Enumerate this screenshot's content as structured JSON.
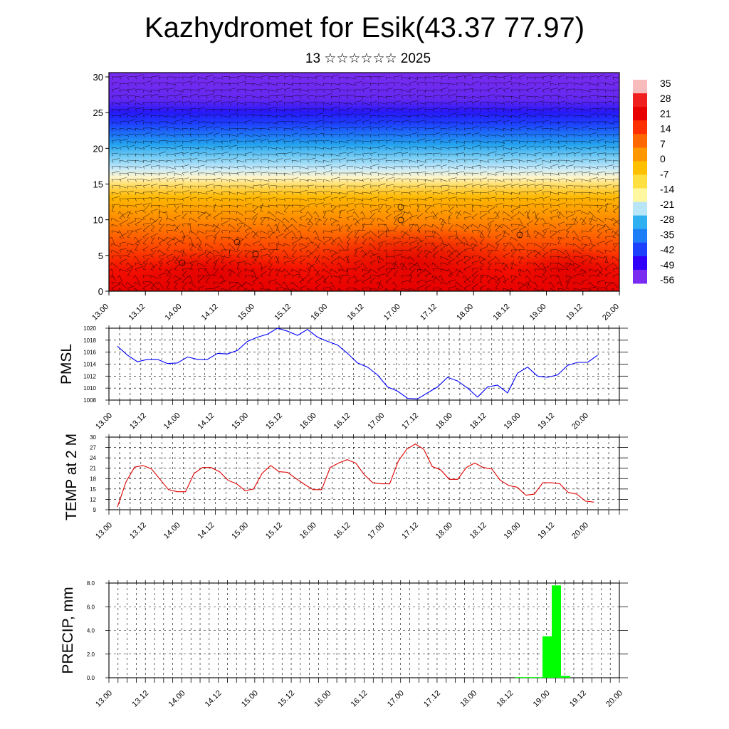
{
  "header": {
    "title": "Kazhydromet for Esik(43.37 77.97)",
    "subtitle": "13 ☆☆☆☆☆☆ 2025"
  },
  "colors": {
    "pmsl_line": "#0000ff",
    "temp_line": "#e00000",
    "precip_bar": "#00ff00"
  },
  "chart_data": [
    {
      "type": "heatmap",
      "name": "cross-section",
      "x_tick_labels": [
        "13.00",
        "13.12",
        "14.00",
        "14.12",
        "15.00",
        "15.12",
        "16.00",
        "16.12",
        "17.00",
        "17.12",
        "18.00",
        "18.12",
        "19.00",
        "19.12",
        "20.00"
      ],
      "y_ticks": [
        0,
        5,
        10,
        15,
        20,
        25,
        30
      ],
      "ylim": [
        0,
        30.6
      ],
      "colorbar_labels": [
        "35",
        "28",
        "21",
        "14",
        "7",
        "0",
        "-7",
        "-14",
        "-21",
        "-28",
        "-35",
        "-42",
        "-49",
        "-56"
      ],
      "colorbar_colors": [
        "#f8bcbc",
        "#f02020",
        "#e80000",
        "#ff3000",
        "#ff6800",
        "#ff9800",
        "#ffc000",
        "#ffe040",
        "#fff8a0",
        "#b8e6f8",
        "#30b0f0",
        "#1e7ef8",
        "#1e40ff",
        "#3000f8",
        "#7a2cf0"
      ]
    },
    {
      "type": "line",
      "name": "pmsl",
      "ylabel": "PMSL",
      "y_ticks": [
        1008,
        1010,
        1012,
        1014,
        1016,
        1018,
        1020
      ],
      "ylim": [
        1008,
        1020
      ],
      "x_tick_labels": [
        "13.00",
        "13.12",
        "14.00",
        "14.12",
        "15.00",
        "15.12",
        "16.00",
        "16.12",
        "17.00",
        "17.12",
        "18.00",
        "18.12",
        "19.00",
        "19.12",
        "20.00"
      ],
      "values": [
        1017.0,
        1015.5,
        1014.4,
        1014.8,
        1014.8,
        1014.1,
        1014.2,
        1015.2,
        1014.8,
        1014.8,
        1015.8,
        1015.7,
        1016.3,
        1017.8,
        1018.5,
        1019.0,
        1020.0,
        1019.5,
        1018.8,
        1019.8,
        1018.5,
        1017.8,
        1017.2,
        1015.8,
        1014.2,
        1013.5,
        1012.2,
        1010.2,
        1009.5,
        1008.3,
        1008.2,
        1009.2,
        1010.2,
        1011.8,
        1011.2,
        1010.0,
        1008.5,
        1010.2,
        1010.5,
        1009.2,
        1012.5,
        1013.5,
        1012.0,
        1011.8,
        1012.2,
        1013.8,
        1014.3,
        1014.3,
        1015.5
      ]
    },
    {
      "type": "line",
      "name": "temp",
      "ylabel": "TEMP at 2 M",
      "y_ticks": [
        9,
        12,
        15,
        18,
        21,
        24,
        27,
        30
      ],
      "ylim": [
        9,
        30
      ],
      "x_tick_labels": [
        "13.00",
        "13.12",
        "14.00",
        "14.12",
        "15.00",
        "15.12",
        "16.00",
        "16.12",
        "17.00",
        "17.12",
        "18.00",
        "18.12",
        "19.00",
        "19.12",
        "20.00"
      ],
      "values": [
        9.8,
        17.0,
        21.3,
        21.8,
        20.8,
        17.8,
        14.8,
        14.2,
        14.2,
        19.5,
        21.2,
        21.2,
        20.0,
        17.5,
        16.5,
        14.5,
        15.0,
        19.5,
        21.8,
        20.0,
        19.8,
        18.0,
        16.3,
        14.8,
        14.8,
        21.2,
        22.5,
        23.5,
        22.5,
        19.2,
        16.8,
        16.5,
        16.5,
        23.0,
        26.5,
        28.0,
        26.5,
        21.5,
        20.5,
        17.8,
        17.8,
        21.2,
        22.5,
        21.2,
        20.8,
        17.5,
        16.0,
        15.5,
        13.2,
        13.5,
        16.8,
        16.8,
        16.5,
        14.0,
        13.5,
        11.5,
        11.2
      ]
    },
    {
      "type": "bar",
      "name": "precip",
      "ylabel": "PRECIP, mm",
      "y_tick_labels": [
        "0.0",
        "2.0",
        "4.0",
        "6.0",
        "8.0"
      ],
      "ylim": [
        0,
        8.0
      ],
      "x_tick_labels": [
        "13.00",
        "13.12",
        "14.00",
        "14.12",
        "15.00",
        "15.12",
        "16.00",
        "16.12",
        "17.00",
        "17.12",
        "18.00",
        "18.12",
        "19.00",
        "19.12",
        "20.00"
      ],
      "bar_positions": [
        45,
        46,
        47,
        48,
        49,
        50
      ],
      "values": [
        0.05,
        0.05,
        0.05,
        3.5,
        7.8,
        0.15
      ]
    }
  ]
}
